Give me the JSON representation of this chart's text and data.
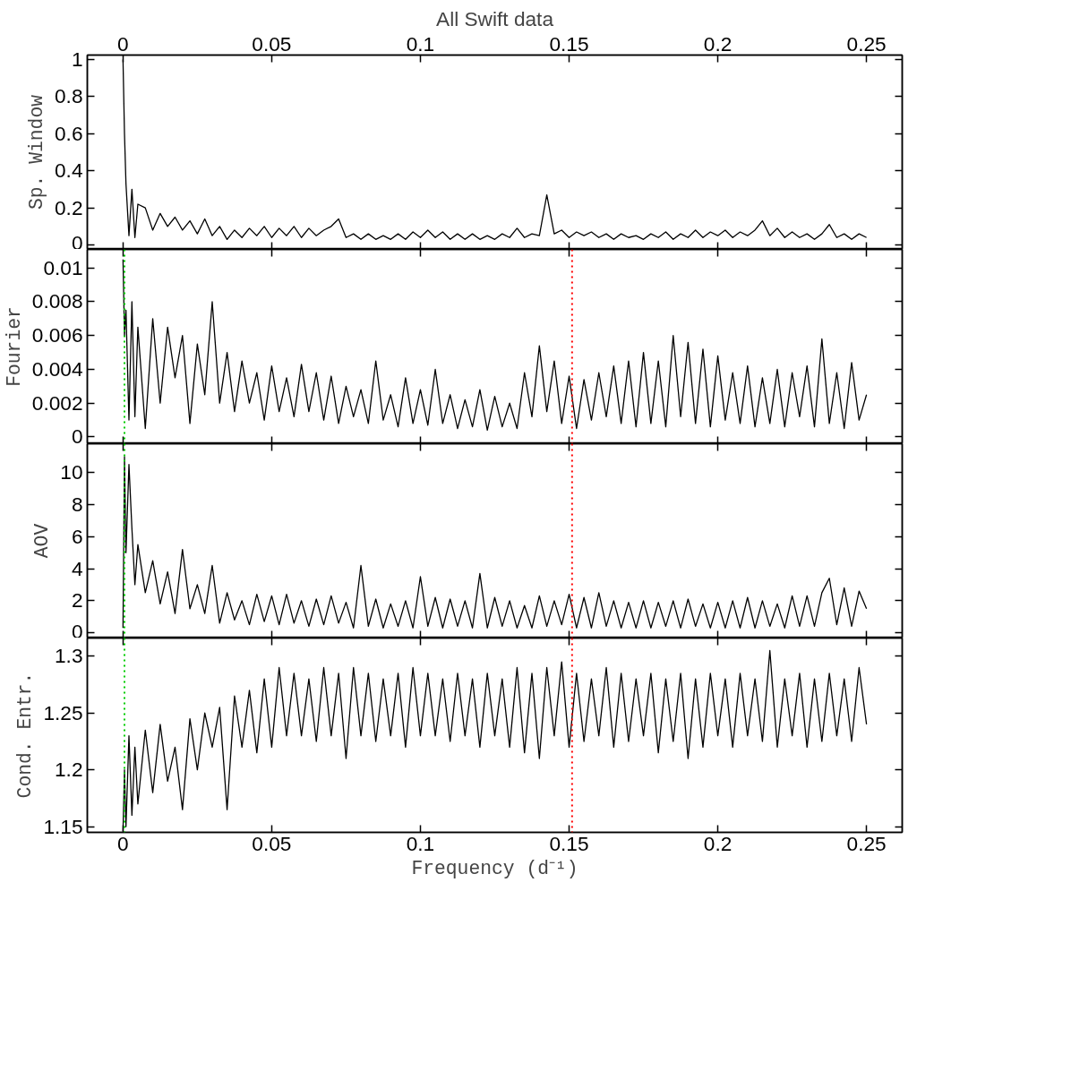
{
  "chart_data": [
    {
      "type": "line",
      "title": "All Swift data",
      "ylabel": "Sp. Window",
      "xlim": [
        -0.012,
        0.262
      ],
      "xticks": [
        0,
        0.05,
        0.1,
        0.15,
        0.2,
        0.25
      ],
      "x2lim": [
        -0.012,
        0.262
      ],
      "x2ticks": [
        0,
        0.05,
        0.1,
        0.15,
        0.2,
        0.25
      ],
      "ylim": [
        -0.024,
        1.024
      ],
      "yticks": [
        0,
        0.2,
        0.4,
        0.6,
        0.8,
        1
      ],
      "tick_labels": "y",
      "grid": false,
      "marker": "none",
      "line_style": "solid",
      "x": [
        0,
        0.0005,
        0.001,
        0.002,
        0.003,
        0.004,
        0.005,
        0.0075,
        0.01,
        0.0125,
        0.015,
        0.0175,
        0.02,
        0.0225,
        0.025,
        0.0275,
        0.03,
        0.0325,
        0.035,
        0.0375,
        0.04,
        0.0425,
        0.045,
        0.0475,
        0.05,
        0.0525,
        0.055,
        0.0575,
        0.06,
        0.0625,
        0.065,
        0.0675,
        0.07,
        0.0725,
        0.075,
        0.0775,
        0.08,
        0.0825,
        0.085,
        0.0875,
        0.09,
        0.0925,
        0.095,
        0.0975,
        0.1,
        0.1025,
        0.105,
        0.1075,
        0.11,
        0.1125,
        0.115,
        0.1175,
        0.12,
        0.1225,
        0.125,
        0.1275,
        0.13,
        0.1325,
        0.135,
        0.1375,
        0.14,
        0.1425,
        0.145,
        0.1475,
        0.15,
        0.1525,
        0.155,
        0.1575,
        0.16,
        0.1625,
        0.165,
        0.1675,
        0.17,
        0.1725,
        0.175,
        0.1775,
        0.18,
        0.1825,
        0.185,
        0.1875,
        0.19,
        0.1925,
        0.195,
        0.1975,
        0.2,
        0.2025,
        0.205,
        0.2075,
        0.21,
        0.2125,
        0.215,
        0.2175,
        0.22,
        0.2225,
        0.225,
        0.2275,
        0.23,
        0.2325,
        0.235,
        0.2375,
        0.24,
        0.2425,
        0.245,
        0.2475,
        0.25
      ],
      "series": [
        {
          "color": "#000000",
          "values": [
            1.0,
            0.6,
            0.33,
            0.05,
            0.3,
            0.04,
            0.22,
            0.2,
            0.08,
            0.17,
            0.1,
            0.15,
            0.08,
            0.13,
            0.06,
            0.14,
            0.05,
            0.1,
            0.03,
            0.08,
            0.04,
            0.09,
            0.05,
            0.1,
            0.04,
            0.09,
            0.05,
            0.1,
            0.04,
            0.09,
            0.05,
            0.08,
            0.1,
            0.14,
            0.04,
            0.06,
            0.03,
            0.06,
            0.03,
            0.05,
            0.03,
            0.06,
            0.03,
            0.07,
            0.04,
            0.08,
            0.04,
            0.07,
            0.03,
            0.06,
            0.03,
            0.06,
            0.03,
            0.05,
            0.03,
            0.06,
            0.04,
            0.09,
            0.04,
            0.06,
            0.05,
            0.27,
            0.06,
            0.08,
            0.04,
            0.07,
            0.05,
            0.07,
            0.04,
            0.06,
            0.03,
            0.06,
            0.04,
            0.05,
            0.03,
            0.06,
            0.04,
            0.07,
            0.03,
            0.06,
            0.04,
            0.08,
            0.04,
            0.07,
            0.05,
            0.08,
            0.04,
            0.07,
            0.05,
            0.08,
            0.13,
            0.05,
            0.09,
            0.04,
            0.07,
            0.04,
            0.06,
            0.03,
            0.06,
            0.11,
            0.04,
            0.06,
            0.03,
            0.06,
            0.04
          ]
        }
      ]
    },
    {
      "type": "line",
      "ylabel": "Fourier",
      "xlim": [
        -0.012,
        0.262
      ],
      "xticks": [
        0,
        0.05,
        0.1,
        0.15,
        0.2,
        0.25
      ],
      "ylim": [
        -0.0004,
        0.0111
      ],
      "yticks": [
        0,
        0.002,
        0.004,
        0.006,
        0.008,
        0.01
      ],
      "tick_labels": "y",
      "grid": false,
      "marker": "none",
      "line_style": "solid",
      "ref_lines": [
        {
          "axis": "x",
          "value": 0.0005,
          "color": "#00cc00",
          "line_style": "dotted"
        },
        {
          "axis": "x",
          "value": 0.151,
          "color": "#ff0000",
          "line_style": "dotted"
        }
      ],
      "x": [
        0,
        0.0005,
        0.001,
        0.002,
        0.003,
        0.004,
        0.005,
        0.0075,
        0.01,
        0.0125,
        0.015,
        0.0175,
        0.02,
        0.0225,
        0.025,
        0.0275,
        0.03,
        0.0325,
        0.035,
        0.0375,
        0.04,
        0.0425,
        0.045,
        0.0475,
        0.05,
        0.0525,
        0.055,
        0.0575,
        0.06,
        0.0625,
        0.065,
        0.0675,
        0.07,
        0.0725,
        0.075,
        0.0775,
        0.08,
        0.0825,
        0.085,
        0.0875,
        0.09,
        0.0925,
        0.095,
        0.0975,
        0.1,
        0.1025,
        0.105,
        0.1075,
        0.11,
        0.1125,
        0.115,
        0.1175,
        0.12,
        0.1225,
        0.125,
        0.1275,
        0.13,
        0.1325,
        0.135,
        0.1375,
        0.14,
        0.1425,
        0.145,
        0.1475,
        0.15,
        0.1525,
        0.155,
        0.1575,
        0.16,
        0.1625,
        0.165,
        0.1675,
        0.17,
        0.1725,
        0.175,
        0.1775,
        0.18,
        0.1825,
        0.185,
        0.1875,
        0.19,
        0.1925,
        0.195,
        0.1975,
        0.2,
        0.2025,
        0.205,
        0.2075,
        0.21,
        0.2125,
        0.215,
        0.2175,
        0.22,
        0.2225,
        0.225,
        0.2275,
        0.23,
        0.2325,
        0.235,
        0.2375,
        0.24,
        0.2425,
        0.245,
        0.2475,
        0.25
      ],
      "series": [
        {
          "color": "#000000",
          "values": [
            0.0105,
            0.006,
            0.0075,
            0.001,
            0.008,
            0.0012,
            0.0065,
            0.0005,
            0.007,
            0.002,
            0.0065,
            0.0035,
            0.006,
            0.0008,
            0.0055,
            0.0025,
            0.008,
            0.002,
            0.005,
            0.0015,
            0.0045,
            0.002,
            0.0038,
            0.001,
            0.0042,
            0.0015,
            0.0035,
            0.0012,
            0.0043,
            0.0015,
            0.0038,
            0.001,
            0.0036,
            0.0008,
            0.003,
            0.0012,
            0.0028,
            0.0008,
            0.0045,
            0.001,
            0.0025,
            0.0006,
            0.0035,
            0.0008,
            0.0028,
            0.0007,
            0.004,
            0.0008,
            0.0025,
            0.0005,
            0.0022,
            0.0006,
            0.0028,
            0.0004,
            0.0024,
            0.0006,
            0.002,
            0.0005,
            0.0038,
            0.0012,
            0.0054,
            0.0015,
            0.0045,
            0.0008,
            0.0036,
            0.0005,
            0.0034,
            0.001,
            0.0038,
            0.0012,
            0.0042,
            0.0008,
            0.0045,
            0.0006,
            0.005,
            0.0008,
            0.0045,
            0.0006,
            0.006,
            0.0012,
            0.0056,
            0.0008,
            0.0052,
            0.0006,
            0.0048,
            0.001,
            0.0038,
            0.0008,
            0.0042,
            0.0006,
            0.0035,
            0.0008,
            0.004,
            0.0006,
            0.0038,
            0.0012,
            0.0042,
            0.0006,
            0.0058,
            0.0008,
            0.0038,
            0.0005,
            0.0044,
            0.001,
            0.0025
          ]
        }
      ]
    },
    {
      "type": "line",
      "ylabel": "AOV",
      "xlim": [
        -0.012,
        0.262
      ],
      "xticks": [
        0,
        0.05,
        0.1,
        0.15,
        0.2,
        0.25
      ],
      "ylim": [
        -0.33,
        11.8
      ],
      "yticks": [
        0,
        2,
        4,
        6,
        8,
        10
      ],
      "tick_labels": "y",
      "grid": false,
      "marker": "none",
      "line_style": "solid",
      "ref_lines": [
        {
          "axis": "x",
          "value": 0.0005,
          "color": "#00cc00",
          "line_style": "dotted"
        },
        {
          "axis": "x",
          "value": 0.151,
          "color": "#ff0000",
          "line_style": "dotted"
        }
      ],
      "x": [
        0,
        0.0005,
        0.001,
        0.002,
        0.003,
        0.004,
        0.005,
        0.0075,
        0.01,
        0.0125,
        0.015,
        0.0175,
        0.02,
        0.0225,
        0.025,
        0.0275,
        0.03,
        0.0325,
        0.035,
        0.0375,
        0.04,
        0.0425,
        0.045,
        0.0475,
        0.05,
        0.0525,
        0.055,
        0.0575,
        0.06,
        0.0625,
        0.065,
        0.0675,
        0.07,
        0.0725,
        0.075,
        0.0775,
        0.08,
        0.0825,
        0.085,
        0.0875,
        0.09,
        0.0925,
        0.095,
        0.0975,
        0.1,
        0.1025,
        0.105,
        0.1075,
        0.11,
        0.1125,
        0.115,
        0.1175,
        0.12,
        0.1225,
        0.125,
        0.1275,
        0.13,
        0.1325,
        0.135,
        0.1375,
        0.14,
        0.1425,
        0.145,
        0.1475,
        0.15,
        0.1525,
        0.155,
        0.1575,
        0.16,
        0.1625,
        0.165,
        0.1675,
        0.17,
        0.1725,
        0.175,
        0.1775,
        0.18,
        0.1825,
        0.185,
        0.1875,
        0.19,
        0.1925,
        0.195,
        0.1975,
        0.2,
        0.2025,
        0.205,
        0.2075,
        0.21,
        0.2125,
        0.215,
        0.2175,
        0.22,
        0.2225,
        0.225,
        0.2275,
        0.23,
        0.2325,
        0.235,
        0.2375,
        0.24,
        0.2425,
        0.245,
        0.2475,
        0.25
      ],
      "series": [
        {
          "color": "#000000",
          "values": [
            0.3,
            11,
            5,
            10.5,
            6.5,
            3,
            5.5,
            2.5,
            4.5,
            1.8,
            3.8,
            1.2,
            5.2,
            1.5,
            3,
            1.2,
            4.2,
            0.6,
            2.5,
            0.8,
            2,
            0.5,
            2.4,
            0.7,
            2.3,
            0.5,
            2.4,
            0.6,
            2,
            0.4,
            2.1,
            0.5,
            2.3,
            0.6,
            1.9,
            0.3,
            4.2,
            0.4,
            2.1,
            0.3,
            1.8,
            0.4,
            2,
            0.3,
            3.5,
            0.4,
            2.2,
            0.3,
            2.1,
            0.4,
            2,
            0.3,
            3.7,
            0.3,
            2.2,
            0.4,
            2,
            0.3,
            1.7,
            0.3,
            2.3,
            0.4,
            2,
            0.5,
            2.4,
            0.3,
            2.2,
            0.3,
            2.5,
            0.4,
            2,
            0.3,
            1.9,
            0.3,
            2,
            0.3,
            1.9,
            0.4,
            2,
            0.3,
            2.1,
            0.4,
            1.8,
            0.3,
            1.9,
            0.3,
            2,
            0.3,
            2.2,
            0.3,
            2,
            0.4,
            1.8,
            0.3,
            2.3,
            0.4,
            2.3,
            0.4,
            2.5,
            3.4,
            0.5,
            2.8,
            0.4,
            2.6,
            1.5
          ]
        }
      ]
    },
    {
      "type": "line",
      "ylabel": "Cond. Entr.",
      "xlabel": "Frequency (d⁻¹)",
      "xlim": [
        -0.012,
        0.262
      ],
      "xticks": [
        0,
        0.05,
        0.1,
        0.15,
        0.2,
        0.25
      ],
      "ylim": [
        1.145,
        1.316
      ],
      "yticks": [
        1.15,
        1.2,
        1.25,
        1.3
      ],
      "grid": false,
      "marker": "none",
      "line_style": "solid",
      "ref_lines": [
        {
          "axis": "x",
          "value": 0.0005,
          "color": "#00cc00",
          "line_style": "dotted"
        },
        {
          "axis": "x",
          "value": 0.151,
          "color": "#ff0000",
          "line_style": "dotted"
        }
      ],
      "x": [
        0,
        0.0005,
        0.001,
        0.002,
        0.003,
        0.004,
        0.005,
        0.0075,
        0.01,
        0.0125,
        0.015,
        0.0175,
        0.02,
        0.0225,
        0.025,
        0.0275,
        0.03,
        0.0325,
        0.035,
        0.0375,
        0.04,
        0.0425,
        0.045,
        0.0475,
        0.05,
        0.0525,
        0.055,
        0.0575,
        0.06,
        0.0625,
        0.065,
        0.0675,
        0.07,
        0.0725,
        0.075,
        0.0775,
        0.08,
        0.0825,
        0.085,
        0.0875,
        0.09,
        0.0925,
        0.095,
        0.0975,
        0.1,
        0.1025,
        0.105,
        0.1075,
        0.11,
        0.1125,
        0.115,
        0.1175,
        0.12,
        0.1225,
        0.125,
        0.1275,
        0.13,
        0.1325,
        0.135,
        0.1375,
        0.14,
        0.1425,
        0.145,
        0.1475,
        0.15,
        0.1525,
        0.155,
        0.1575,
        0.16,
        0.1625,
        0.165,
        0.1675,
        0.17,
        0.1725,
        0.175,
        0.1775,
        0.18,
        0.1825,
        0.185,
        0.1875,
        0.19,
        0.1925,
        0.195,
        0.1975,
        0.2,
        0.2025,
        0.205,
        0.2075,
        0.21,
        0.2125,
        0.215,
        0.2175,
        0.22,
        0.2225,
        0.225,
        0.2275,
        0.23,
        0.2325,
        0.235,
        0.2375,
        0.24,
        0.2425,
        0.245,
        0.2475,
        0.25
      ],
      "series": [
        {
          "color": "#000000",
          "values": [
            1.146,
            1.2,
            1.15,
            1.23,
            1.16,
            1.22,
            1.17,
            1.235,
            1.18,
            1.24,
            1.19,
            1.22,
            1.165,
            1.245,
            1.2,
            1.25,
            1.22,
            1.255,
            1.165,
            1.265,
            1.22,
            1.27,
            1.215,
            1.28,
            1.22,
            1.29,
            1.23,
            1.285,
            1.23,
            1.28,
            1.225,
            1.29,
            1.23,
            1.285,
            1.21,
            1.29,
            1.23,
            1.285,
            1.225,
            1.28,
            1.23,
            1.285,
            1.22,
            1.29,
            1.23,
            1.285,
            1.23,
            1.28,
            1.225,
            1.285,
            1.23,
            1.28,
            1.22,
            1.285,
            1.23,
            1.28,
            1.22,
            1.29,
            1.215,
            1.285,
            1.21,
            1.29,
            1.23,
            1.295,
            1.22,
            1.285,
            1.225,
            1.28,
            1.23,
            1.29,
            1.22,
            1.285,
            1.225,
            1.28,
            1.23,
            1.285,
            1.215,
            1.28,
            1.225,
            1.285,
            1.21,
            1.28,
            1.22,
            1.285,
            1.23,
            1.28,
            1.22,
            1.285,
            1.23,
            1.28,
            1.225,
            1.305,
            1.22,
            1.28,
            1.23,
            1.285,
            1.22,
            1.28,
            1.225,
            1.285,
            1.23,
            1.28,
            1.225,
            1.29,
            1.24
          ]
        }
      ]
    }
  ]
}
